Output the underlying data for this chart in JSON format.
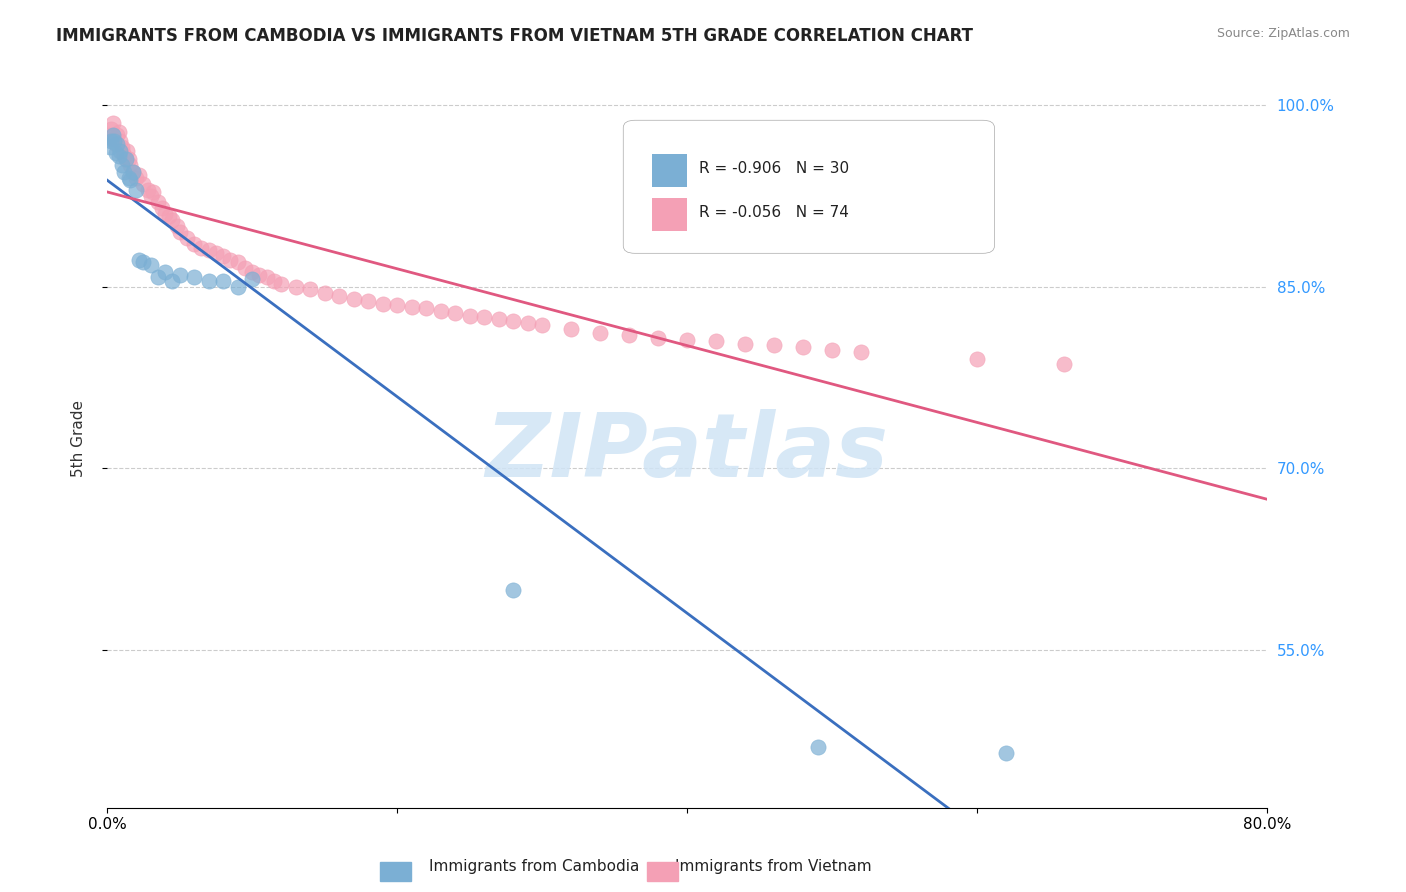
{
  "title": "IMMIGRANTS FROM CAMBODIA VS IMMIGRANTS FROM VIETNAM 5TH GRADE CORRELATION CHART",
  "source": "Source: ZipAtlas.com",
  "xlabel_cambodia": "Immigrants from Cambodia",
  "xlabel_vietnam": "Immigrants from Vietnam",
  "ylabel": "5th Grade",
  "r_cambodia": -0.906,
  "n_cambodia": 30,
  "r_vietnam": -0.056,
  "n_vietnam": 74,
  "xlim": [
    0.0,
    0.8
  ],
  "ylim": [
    0.42,
    1.03
  ],
  "yticks": [
    0.55,
    0.7,
    0.85,
    1.0
  ],
  "ytick_labels": [
    "55.0%",
    "70.0%",
    "85.0%",
    "100.0%"
  ],
  "xticks": [
    0.0,
    0.2,
    0.4,
    0.6,
    0.8
  ],
  "xtick_labels": [
    "0.0%",
    "",
    "",
    "",
    "80.0%"
  ],
  "color_cambodia": "#7bafd4",
  "color_vietnam": "#f4a0b5",
  "line_color_cambodia": "#3a6fbf",
  "line_color_vietnam": "#e05880",
  "watermark": "ZIPatlas",
  "watermark_color": "#d0e4f5",
  "scatter_cambodia_x": [
    0.002,
    0.003,
    0.004,
    0.005,
    0.006,
    0.007,
    0.008,
    0.009,
    0.01,
    0.012,
    0.013,
    0.015,
    0.016,
    0.018,
    0.02,
    0.022,
    0.025,
    0.03,
    0.035,
    0.04,
    0.045,
    0.05,
    0.06,
    0.07,
    0.08,
    0.09,
    0.1,
    0.28,
    0.49,
    0.62
  ],
  "scatter_cambodia_y": [
    0.965,
    0.97,
    0.975,
    0.97,
    0.96,
    0.968,
    0.958,
    0.962,
    0.95,
    0.945,
    0.955,
    0.94,
    0.938,
    0.945,
    0.93,
    0.872,
    0.87,
    0.868,
    0.858,
    0.862,
    0.855,
    0.86,
    0.858,
    0.855,
    0.855,
    0.85,
    0.856,
    0.6,
    0.47,
    0.465
  ],
  "scatter_vietnam_x": [
    0.002,
    0.003,
    0.004,
    0.005,
    0.006,
    0.007,
    0.008,
    0.009,
    0.01,
    0.011,
    0.012,
    0.013,
    0.014,
    0.015,
    0.016,
    0.018,
    0.02,
    0.022,
    0.025,
    0.028,
    0.03,
    0.032,
    0.035,
    0.038,
    0.04,
    0.043,
    0.045,
    0.048,
    0.05,
    0.055,
    0.06,
    0.065,
    0.07,
    0.075,
    0.08,
    0.085,
    0.09,
    0.095,
    0.1,
    0.105,
    0.11,
    0.115,
    0.12,
    0.13,
    0.14,
    0.15,
    0.16,
    0.17,
    0.18,
    0.19,
    0.2,
    0.21,
    0.22,
    0.23,
    0.24,
    0.25,
    0.26,
    0.27,
    0.28,
    0.29,
    0.3,
    0.32,
    0.34,
    0.36,
    0.38,
    0.4,
    0.42,
    0.44,
    0.46,
    0.48,
    0.5,
    0.52,
    0.6,
    0.66
  ],
  "scatter_vietnam_y": [
    0.975,
    0.98,
    0.985,
    0.972,
    0.968,
    0.975,
    0.978,
    0.97,
    0.965,
    0.96,
    0.958,
    0.955,
    0.962,
    0.955,
    0.95,
    0.945,
    0.94,
    0.942,
    0.935,
    0.93,
    0.925,
    0.928,
    0.92,
    0.915,
    0.91,
    0.908,
    0.905,
    0.9,
    0.895,
    0.89,
    0.885,
    0.882,
    0.88,
    0.878,
    0.875,
    0.872,
    0.87,
    0.865,
    0.862,
    0.86,
    0.858,
    0.855,
    0.852,
    0.85,
    0.848,
    0.845,
    0.842,
    0.84,
    0.838,
    0.836,
    0.835,
    0.833,
    0.832,
    0.83,
    0.828,
    0.826,
    0.825,
    0.823,
    0.822,
    0.82,
    0.818,
    0.815,
    0.812,
    0.81,
    0.808,
    0.806,
    0.805,
    0.803,
    0.802,
    0.8,
    0.798,
    0.796,
    0.79,
    0.786
  ]
}
